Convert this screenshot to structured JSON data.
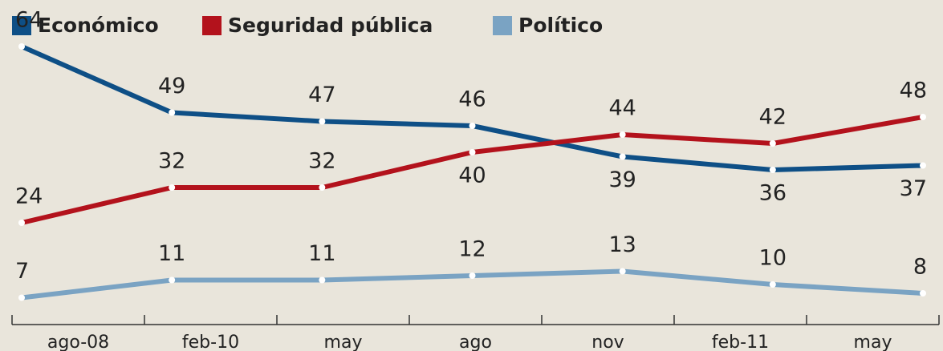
{
  "chart_data": {
    "type": "line",
    "categories": [
      "ago-08",
      "feb-10",
      "may",
      "ago",
      "nov",
      "feb-11",
      "may"
    ],
    "series": [
      {
        "name": "Económico",
        "color": "#0e4f86",
        "values": [
          64,
          49,
          47,
          46,
          39,
          36,
          37
        ]
      },
      {
        "name": "Seguridad pública",
        "color": "#b3121c",
        "values": [
          24,
          32,
          32,
          40,
          44,
          42,
          48
        ]
      },
      {
        "name": "Político",
        "color": "#7aa3c3",
        "values": [
          7,
          11,
          11,
          12,
          13,
          10,
          8
        ]
      }
    ],
    "ylim": [
      0,
      72
    ]
  }
}
